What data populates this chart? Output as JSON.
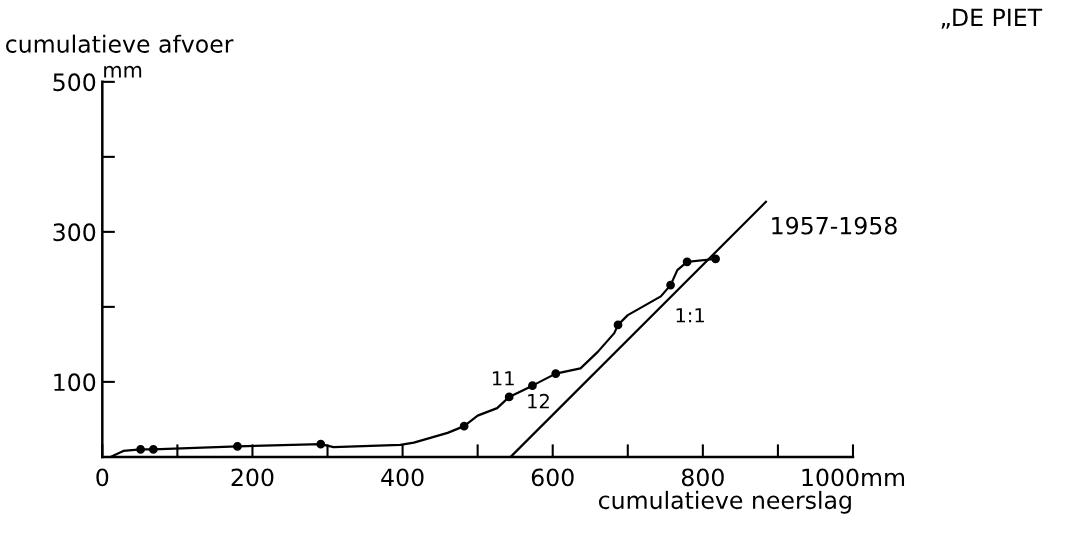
{
  "chart_data": {
    "type": "line",
    "title": "„DE PIET",
    "xlabel": "cumulatieve neerslag",
    "ylabel": "cumulatieve afvoer",
    "xlim": [
      0,
      1000
    ],
    "ylim": [
      0,
      500
    ],
    "xticks": [
      0,
      {
        "value": 100,
        "label": null
      },
      200,
      {
        "value": 300,
        "label": null
      },
      400,
      {
        "value": 500,
        "label": null
      },
      600,
      {
        "value": 700,
        "label": null
      },
      800,
      {
        "value": 900,
        "label": null
      },
      {
        "value": 1000,
        "label": "1000mm"
      }
    ],
    "yticks": [
      100,
      {
        "value": 200,
        "label": null
      },
      300,
      {
        "value": 400,
        "label": null
      },
      500
    ],
    "grid": false,
    "line_style": "solid",
    "series": [
      {
        "type": "line",
        "color": "#000000",
        "x": [
          11,
          28,
          51,
          68,
          180,
          291,
          308,
          397,
          415,
          460,
          482,
          500,
          526,
          542,
          573,
          604,
          637,
          660,
          682,
          687,
          700,
          744,
          757,
          766,
          779,
          817
        ],
        "values": [
          0,
          8,
          10,
          10,
          14,
          17,
          13,
          16,
          19,
          32,
          41,
          55,
          65,
          80,
          95,
          111,
          118,
          140,
          165,
          176,
          189,
          214,
          229,
          249,
          260,
          264
        ]
      },
      {
        "type": "scatter",
        "marker": "circle",
        "color": "#000000",
        "x": [
          51,
          68,
          180,
          291,
          482,
          542,
          573,
          604,
          687,
          757,
          779,
          817
        ],
        "values": [
          10,
          10,
          14,
          17,
          41,
          80,
          95,
          111,
          176,
          229,
          260,
          264
        ]
      },
      {
        "type": "line",
        "color": "#000000",
        "x": [
          544,
          884
        ],
        "values": [
          0,
          340
        ]
      }
    ],
    "annotations": [
      "mm",
      "11",
      "12",
      "1:1",
      "1957-1958"
    ]
  }
}
